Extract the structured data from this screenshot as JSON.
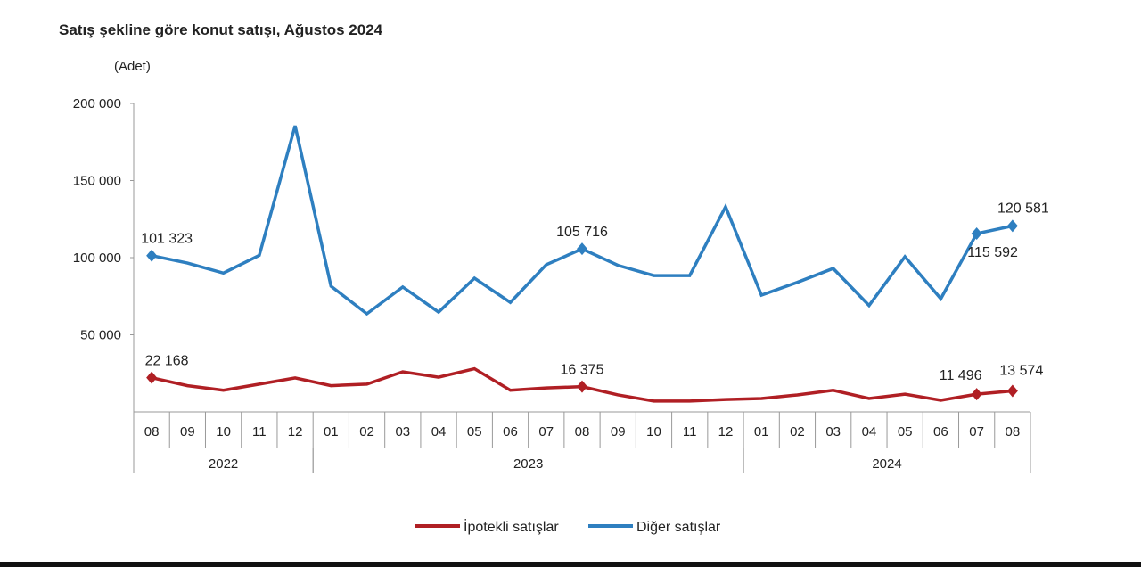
{
  "chart_data": {
    "type": "line",
    "title": "Satış şekline göre konut satışı, Ağustos 2024",
    "ylabel": "(Adet)",
    "xlabel": "",
    "ylim": [
      0,
      200000
    ],
    "yticks": [
      "200 000",
      "150 000",
      "100 000",
      "50 000"
    ],
    "ytick_values": [
      200000,
      150000,
      100000,
      50000
    ],
    "grid": false,
    "legend": "bottom",
    "categories": [
      "08",
      "09",
      "10",
      "11",
      "12",
      "01",
      "02",
      "03",
      "04",
      "05",
      "06",
      "07",
      "08",
      "09",
      "10",
      "11",
      "12",
      "01",
      "02",
      "03",
      "04",
      "05",
      "06",
      "07",
      "08"
    ],
    "years": [
      {
        "label": "2022",
        "start": 0,
        "end": 4
      },
      {
        "label": "2023",
        "start": 5,
        "end": 16
      },
      {
        "label": "2024",
        "start": 17,
        "end": 24
      }
    ],
    "series": [
      {
        "name": "İpotekli satışlar",
        "color": "#b01f24",
        "values": [
          22168,
          17000,
          14000,
          18000,
          22000,
          17000,
          18000,
          26000,
          22500,
          28000,
          14000,
          15500,
          16375,
          11000,
          7000,
          7000,
          8000,
          8700,
          11000,
          14000,
          8700,
          11500,
          7500,
          11496,
          13574
        ],
        "labels": [
          {
            "index": 0,
            "text": "22 168"
          },
          {
            "index": 12,
            "text": "16 375"
          },
          {
            "index": 23,
            "text": "11 496"
          },
          {
            "index": 24,
            "text": "13 574"
          }
        ]
      },
      {
        "name": "Diğer satışlar",
        "color": "#2e7fc0",
        "values": [
          101323,
          96500,
          90000,
          101500,
          185500,
          81500,
          63600,
          81000,
          64700,
          86700,
          71000,
          95400,
          105716,
          95000,
          88400,
          88400,
          133000,
          75700,
          84000,
          93000,
          69000,
          100600,
          73400,
          115592,
          120581
        ],
        "labels": [
          {
            "index": 0,
            "text": "101 323"
          },
          {
            "index": 12,
            "text": "105 716"
          },
          {
            "index": 23,
            "text": "115 592"
          },
          {
            "index": 24,
            "text": "120 581"
          }
        ]
      }
    ]
  }
}
